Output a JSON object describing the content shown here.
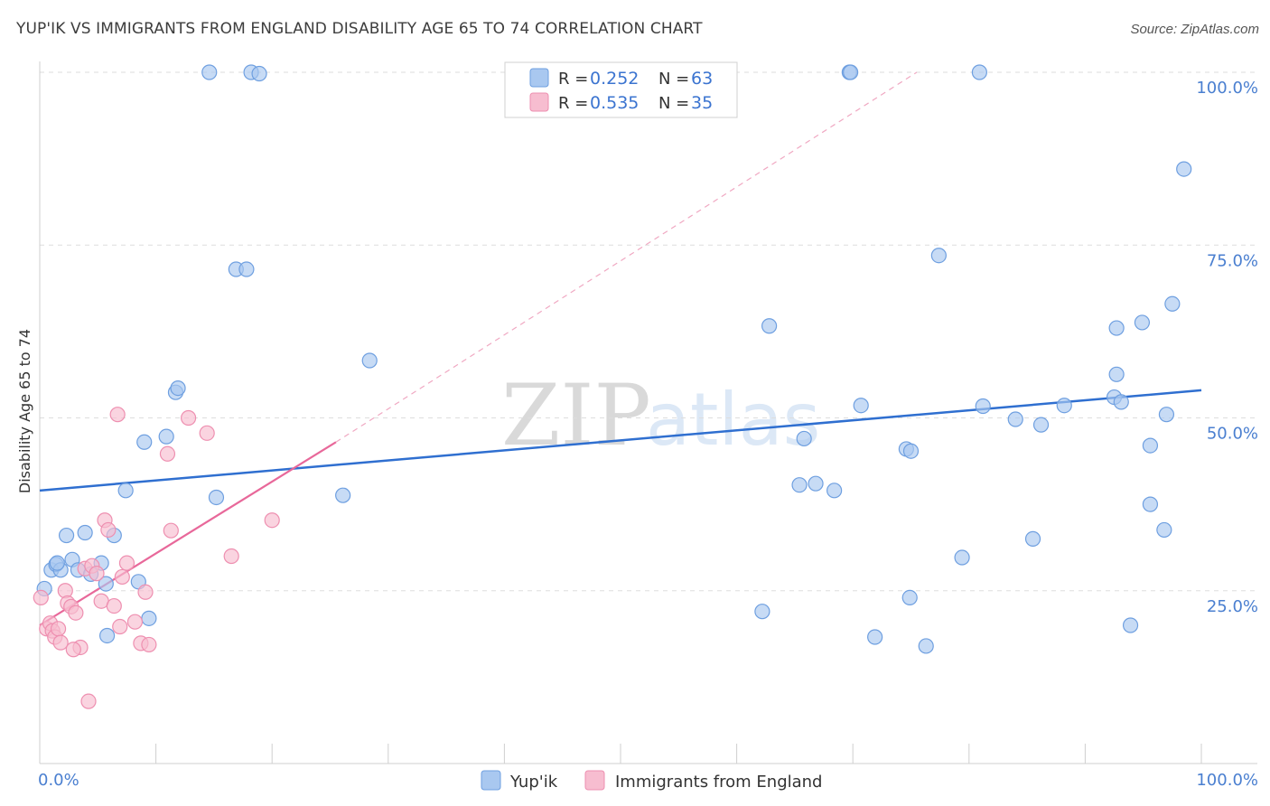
{
  "title": "YUP'IK VS IMMIGRANTS FROM ENGLAND DISABILITY AGE 65 TO 74 CORRELATION CHART",
  "source": "Source: ZipAtlas.com",
  "watermark": {
    "zip": "ZIP",
    "atlas": "atlas"
  },
  "colors": {
    "blue_fill": "#a9c8f0",
    "blue_stroke": "#6e9fe0",
    "blue_line": "#2f6fd0",
    "pink_fill": "#f7bdd0",
    "pink_stroke": "#ee8fb0",
    "pink_line": "#e8689a",
    "grid": "#dddddd",
    "axis_text": "#4a7fd0"
  },
  "legend": {
    "r_label": "R =",
    "n_label": "N =",
    "blue": {
      "r": "0.252",
      "n": "63"
    },
    "pink": {
      "r": "0.535",
      "n": "35"
    }
  },
  "chart_data": {
    "type": "scatter",
    "xlabel": "",
    "ylabel": "Disability Age 65 to 74",
    "xlim": [
      0,
      100
    ],
    "ylim": [
      0,
      100
    ],
    "x_tick_labels": [
      "0.0%",
      "100.0%"
    ],
    "y_tick_values": [
      25,
      50,
      75,
      100
    ],
    "y_tick_labels": [
      "25.0%",
      "50.0%",
      "75.0%",
      "100.0%"
    ],
    "series": [
      {
        "name": "Yup'ik",
        "trend": {
          "x0": 0,
          "y0": 39.5,
          "x1": 100,
          "y1": 54.0
        },
        "points": [
          [
            0.4,
            25.3
          ],
          [
            1.0,
            28.0
          ],
          [
            1.4,
            28.8
          ],
          [
            1.8,
            28.0
          ],
          [
            2.3,
            33.0
          ],
          [
            2.8,
            29.5
          ],
          [
            3.3,
            28.0
          ],
          [
            3.9,
            33.4
          ],
          [
            4.4,
            27.4
          ],
          [
            5.3,
            29.0
          ],
          [
            5.7,
            26.0
          ],
          [
            6.4,
            33.0
          ],
          [
            7.4,
            39.5
          ],
          [
            8.5,
            26.3
          ],
          [
            9.0,
            46.5
          ],
          [
            9.4,
            21.0
          ],
          [
            10.9,
            47.3
          ],
          [
            11.7,
            53.7
          ],
          [
            11.9,
            54.3
          ],
          [
            15.2,
            38.5
          ],
          [
            14.6,
            100.0
          ],
          [
            18.2,
            100.0
          ],
          [
            16.9,
            71.5
          ],
          [
            17.8,
            71.5
          ],
          [
            26.1,
            38.8
          ],
          [
            28.4,
            58.3
          ],
          [
            71.9,
            18.3
          ],
          [
            18.9,
            99.8
          ],
          [
            69.7,
            100.0
          ],
          [
            1.5,
            29.0
          ],
          [
            5.8,
            18.5
          ],
          [
            62.8,
            63.3
          ],
          [
            65.8,
            47.0
          ],
          [
            66.8,
            40.5
          ],
          [
            65.4,
            40.3
          ],
          [
            68.4,
            39.5
          ],
          [
            69.8,
            100.0
          ],
          [
            70.7,
            51.8
          ],
          [
            74.6,
            45.5
          ],
          [
            75.0,
            45.2
          ],
          [
            74.9,
            24.0
          ],
          [
            77.4,
            73.5
          ],
          [
            80.9,
            100.0
          ],
          [
            79.4,
            29.8
          ],
          [
            81.2,
            51.7
          ],
          [
            84.0,
            49.8
          ],
          [
            85.5,
            32.5
          ],
          [
            86.2,
            49.0
          ],
          [
            88.2,
            51.8
          ],
          [
            92.7,
            63.0
          ],
          [
            92.5,
            53.0
          ],
          [
            92.7,
            56.3
          ],
          [
            94.9,
            63.8
          ],
          [
            93.1,
            52.3
          ],
          [
            95.6,
            37.5
          ],
          [
            95.6,
            46.0
          ],
          [
            96.8,
            33.8
          ],
          [
            97.0,
            50.5
          ],
          [
            97.5,
            66.5
          ],
          [
            98.5,
            86.0
          ],
          [
            76.3,
            17.0
          ],
          [
            93.9,
            20.0
          ],
          [
            62.2,
            22.0
          ]
        ]
      },
      {
        "name": "Immigrants from England",
        "trend": {
          "x0": 0,
          "y0": 20.0,
          "x1": 25.5,
          "y1": 46.5
        },
        "trend_ext": {
          "x0": 25.5,
          "y0": 46.5,
          "x1": 75.5,
          "y1": 100.0
        },
        "points": [
          [
            0.1,
            24.0
          ],
          [
            0.6,
            19.5
          ],
          [
            0.9,
            20.3
          ],
          [
            1.1,
            19.2
          ],
          [
            1.3,
            18.3
          ],
          [
            1.6,
            19.5
          ],
          [
            1.8,
            17.5
          ],
          [
            2.2,
            25.0
          ],
          [
            2.4,
            23.2
          ],
          [
            2.7,
            22.7
          ],
          [
            3.1,
            21.8
          ],
          [
            3.5,
            16.8
          ],
          [
            3.9,
            28.2
          ],
          [
            4.2,
            9.0
          ],
          [
            4.5,
            28.6
          ],
          [
            4.9,
            27.5
          ],
          [
            5.3,
            23.5
          ],
          [
            5.6,
            35.2
          ],
          [
            5.9,
            33.8
          ],
          [
            6.4,
            22.8
          ],
          [
            6.7,
            50.5
          ],
          [
            6.9,
            19.8
          ],
          [
            7.1,
            27.0
          ],
          [
            7.5,
            29.0
          ],
          [
            8.2,
            20.5
          ],
          [
            8.7,
            17.4
          ],
          [
            9.1,
            24.8
          ],
          [
            9.4,
            17.2
          ],
          [
            11.3,
            33.7
          ],
          [
            11.0,
            44.8
          ],
          [
            12.8,
            50.0
          ],
          [
            14.4,
            47.8
          ],
          [
            16.5,
            30.0
          ],
          [
            20.0,
            35.2
          ],
          [
            2.9,
            16.5
          ]
        ]
      }
    ]
  },
  "legend_bottom": [
    "Yup'ik",
    "Immigrants from England"
  ]
}
